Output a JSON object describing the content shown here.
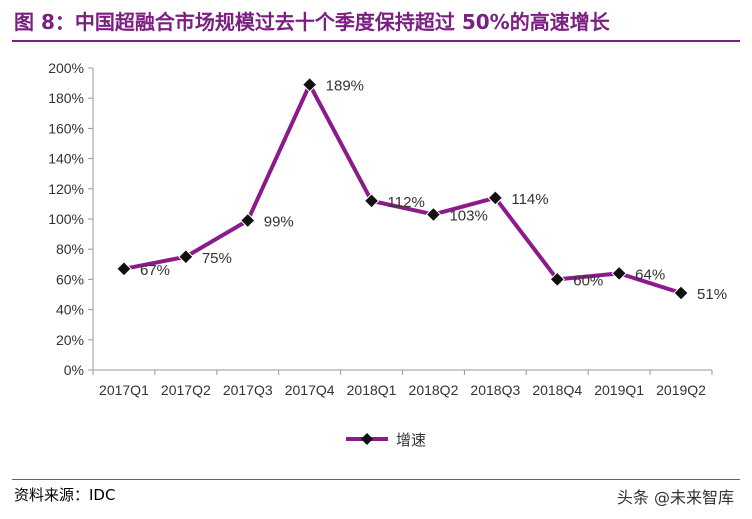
{
  "header": {
    "title": "图 8：中国超融合市场规模过去十个季度保持超过 50%的高速增长"
  },
  "footer": {
    "source": "资料来源：IDC",
    "watermark": "头条 @未来智库"
  },
  "colors": {
    "accent": "#7b1f82",
    "line": "#8b1a8b"
  },
  "chart_data": {
    "type": "line",
    "title": "",
    "xlabel": "",
    "ylabel": "",
    "categories": [
      "2017Q1",
      "2017Q2",
      "2017Q3",
      "2017Q4",
      "2018Q1",
      "2018Q2",
      "2018Q3",
      "2018Q4",
      "2019Q1",
      "2019Q2"
    ],
    "series": [
      {
        "name": "增速",
        "values": [
          67,
          75,
          99,
          189,
          112,
          103,
          114,
          60,
          64,
          51
        ],
        "labels": [
          "67%",
          "75%",
          "99%",
          "189%",
          "112%",
          "103%",
          "114%",
          "60%",
          "64%",
          "51%"
        ]
      }
    ],
    "ylim": [
      0,
      200
    ],
    "yticks": [
      0,
      20,
      40,
      60,
      80,
      100,
      120,
      140,
      160,
      180,
      200
    ],
    "ytick_labels": [
      "0%",
      "20%",
      "40%",
      "60%",
      "80%",
      "100%",
      "120%",
      "140%",
      "160%",
      "180%",
      "200%"
    ],
    "marker": "diamond",
    "grid": false,
    "legend_position": "bottom"
  }
}
